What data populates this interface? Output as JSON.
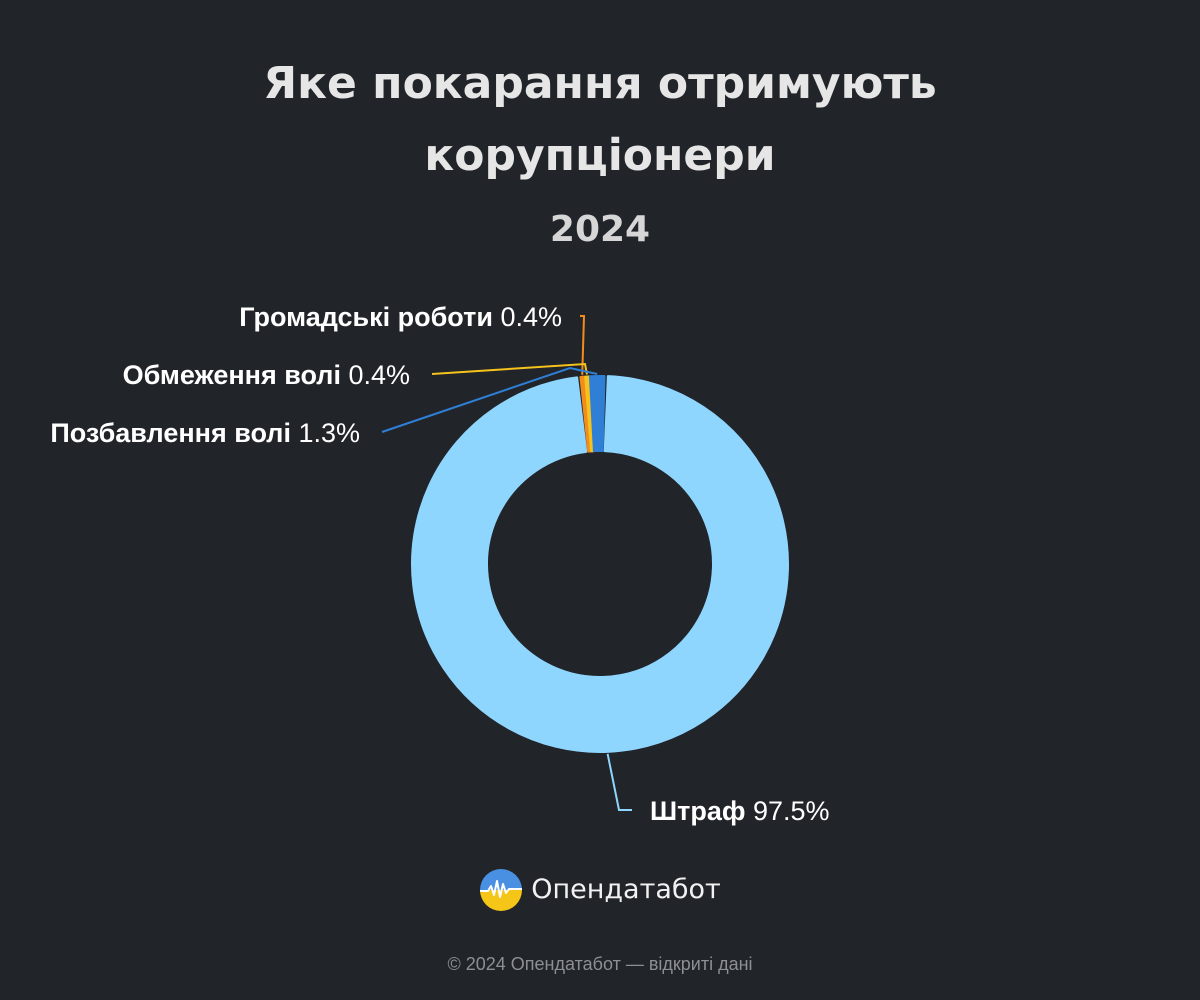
{
  "header": {
    "title_line1": "Яке покарання отримують",
    "title_line2": "корупціонери",
    "subtitle": "2024"
  },
  "chart_data": {
    "type": "pie",
    "donut": true,
    "slices": [
      {
        "name": "Штраф",
        "value": 97.5,
        "label": "97.5%",
        "color": "#8fd6ff"
      },
      {
        "name": "Громадські роботи",
        "value": 0.4,
        "label": "0.4%",
        "color": "#f28c1c"
      },
      {
        "name": "Обмеження волі",
        "value": 0.4,
        "label": "0.4%",
        "color": "#f6c21c"
      },
      {
        "name": "Позбавлення волі",
        "value": 1.3,
        "label": "1.3%",
        "color": "#2f7fd6"
      }
    ],
    "legend": "none"
  },
  "brand": {
    "name": "Опендатабот",
    "logo_icon": "opendatabot-logo-icon"
  },
  "footer": {
    "text": "© 2024 Опендатабот — відкриті дані"
  }
}
